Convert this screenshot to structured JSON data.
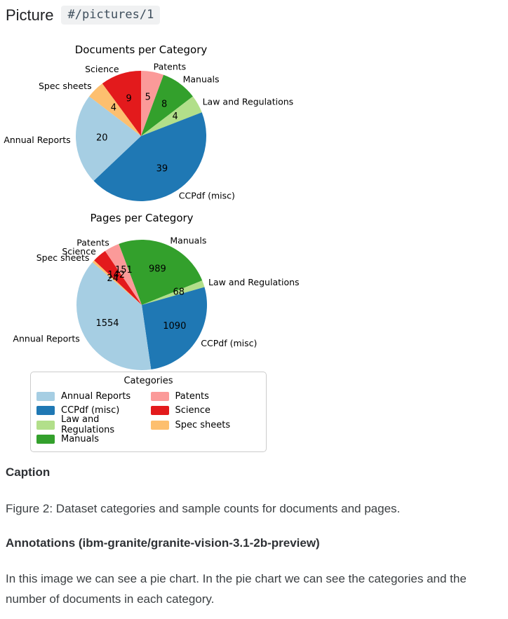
{
  "header": {
    "label": "Picture",
    "code": "#/pictures/1"
  },
  "chart_data": [
    {
      "type": "pie",
      "title": "Documents per Category",
      "start_angle_deg": 0,
      "direction": "clockwise-from-top",
      "value_label_distance": 0.6,
      "category_label_distance": 1.08,
      "slices": [
        {
          "label": "Patents",
          "value": 5,
          "color": "#fb9a99"
        },
        {
          "label": "Manuals",
          "value": 8,
          "color": "#33a02c"
        },
        {
          "label": "Law and Regulations",
          "value": 4,
          "color": "#b2df8a"
        },
        {
          "label": "CCPdf (misc)",
          "value": 39,
          "color": "#1f78b4"
        },
        {
          "label": "Annual Reports",
          "value": 20,
          "color": "#a6cee3"
        },
        {
          "label": "Spec sheets",
          "value": 4,
          "color": "#fdbf6f"
        },
        {
          "label": "Science",
          "value": 9,
          "color": "#e31a1c"
        }
      ]
    },
    {
      "type": "pie",
      "title": "Pages per Category",
      "start_angle_deg": -20.6,
      "direction": "clockwise-from-top",
      "value_label_distance": 0.6,
      "category_label_distance": 1.08,
      "slices": [
        {
          "label": "Manuals",
          "value": 989,
          "color": "#33a02c"
        },
        {
          "label": "Law and Regulations",
          "value": 68,
          "color": "#b2df8a"
        },
        {
          "label": "CCPdf (misc)",
          "value": 1090,
          "color": "#1f78b4"
        },
        {
          "label": "Annual Reports",
          "value": 1554,
          "color": "#a6cee3"
        },
        {
          "label": "Spec sheets",
          "value": 24,
          "color": "#fdbf6f"
        },
        {
          "label": "Science",
          "value": 142,
          "color": "#e31a1c"
        },
        {
          "label": "Patents",
          "value": 151,
          "color": "#fb9a99"
        }
      ]
    }
  ],
  "legend": {
    "title": "Categories",
    "items": [
      {
        "label": "Annual Reports",
        "color": "#a6cee3"
      },
      {
        "label": "CCPdf (misc)",
        "color": "#1f78b4"
      },
      {
        "label": "Law and Regulations",
        "color": "#b2df8a"
      },
      {
        "label": "Manuals",
        "color": "#33a02c"
      },
      {
        "label": "Patents",
        "color": "#fb9a99"
      },
      {
        "label": "Science",
        "color": "#e31a1c"
      },
      {
        "label": "Spec sheets",
        "color": "#fdbf6f"
      }
    ]
  },
  "caption": {
    "heading": "Caption",
    "text": "Figure 2: Dataset categories and sample counts for documents and pages."
  },
  "annotations": {
    "heading": "Annotations (ibm-granite/granite-vision-3.1-2b-preview)",
    "text": "In this image we can see a pie chart. In the pie chart we can see the categories and the number of documents in each category."
  }
}
